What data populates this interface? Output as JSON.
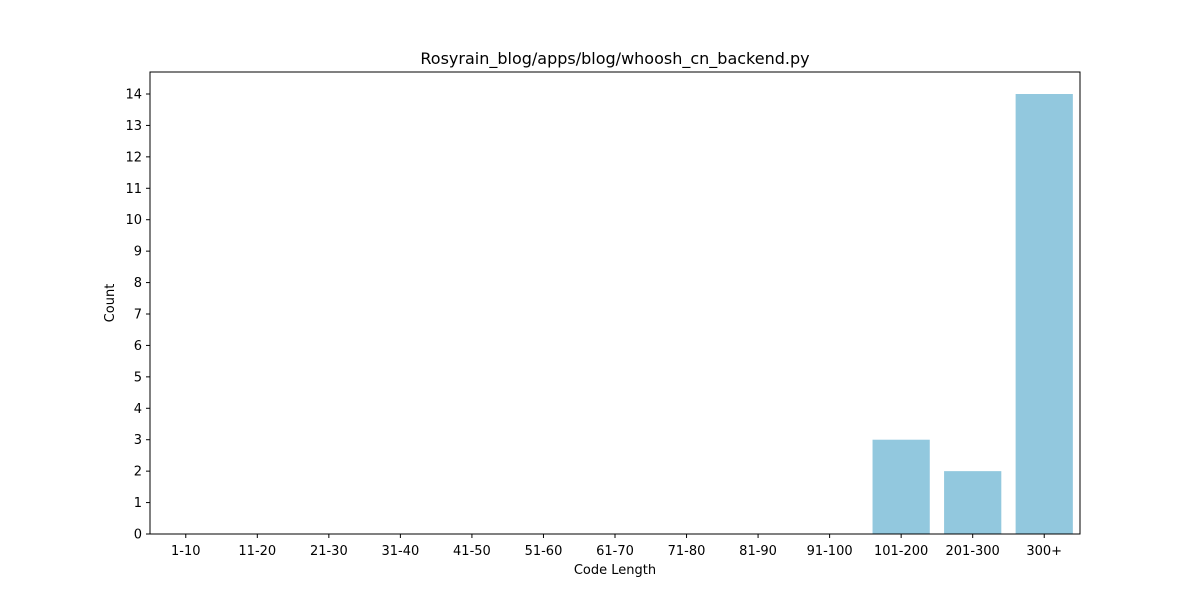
{
  "chart_data": {
    "type": "bar",
    "title": "Rosyrain_blog/apps/blog/whoosh_cn_backend.py",
    "xlabel": "Code Length",
    "ylabel": "Count",
    "categories": [
      "1-10",
      "11-20",
      "21-30",
      "31-40",
      "41-50",
      "51-60",
      "61-70",
      "71-80",
      "81-90",
      "91-100",
      "101-200",
      "201-300",
      "300+"
    ],
    "values": [
      0,
      0,
      0,
      0,
      0,
      0,
      0,
      0,
      0,
      0,
      3,
      2,
      14
    ],
    "ylim": [
      0,
      14.7
    ],
    "yticks": [
      0,
      1,
      2,
      3,
      4,
      5,
      6,
      7,
      8,
      9,
      10,
      11,
      12,
      13,
      14
    ],
    "grid": false,
    "bar_color": "#92c8de"
  }
}
